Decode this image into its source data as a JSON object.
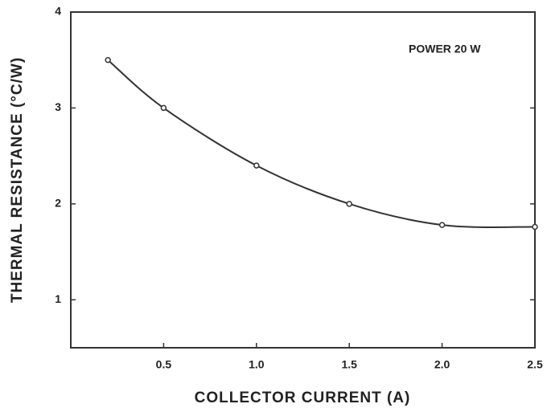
{
  "chart_data": {
    "type": "line",
    "x_label": "COLLECTOR CURRENT (A)",
    "y_label": "THERMAL RESISTANCE (°C/W)",
    "annotation": "POWER 20 W",
    "series": [
      {
        "x": [
          0.2,
          0.5,
          1.0,
          1.5,
          2.0,
          2.5
        ],
        "values": [
          3.5,
          3.0,
          2.4,
          2.0,
          1.78,
          1.76
        ],
        "color": "#333333"
      }
    ],
    "xlim": [
      0,
      2.5
    ],
    "xticks": [
      0.5,
      {
        "value": 1,
        "label": "1.0"
      },
      1.5,
      {
        "value": 2,
        "label": "2.0"
      },
      2.5
    ],
    "ylim": [
      0.5,
      4
    ],
    "yticks": [
      1,
      2,
      3,
      4
    ]
  }
}
